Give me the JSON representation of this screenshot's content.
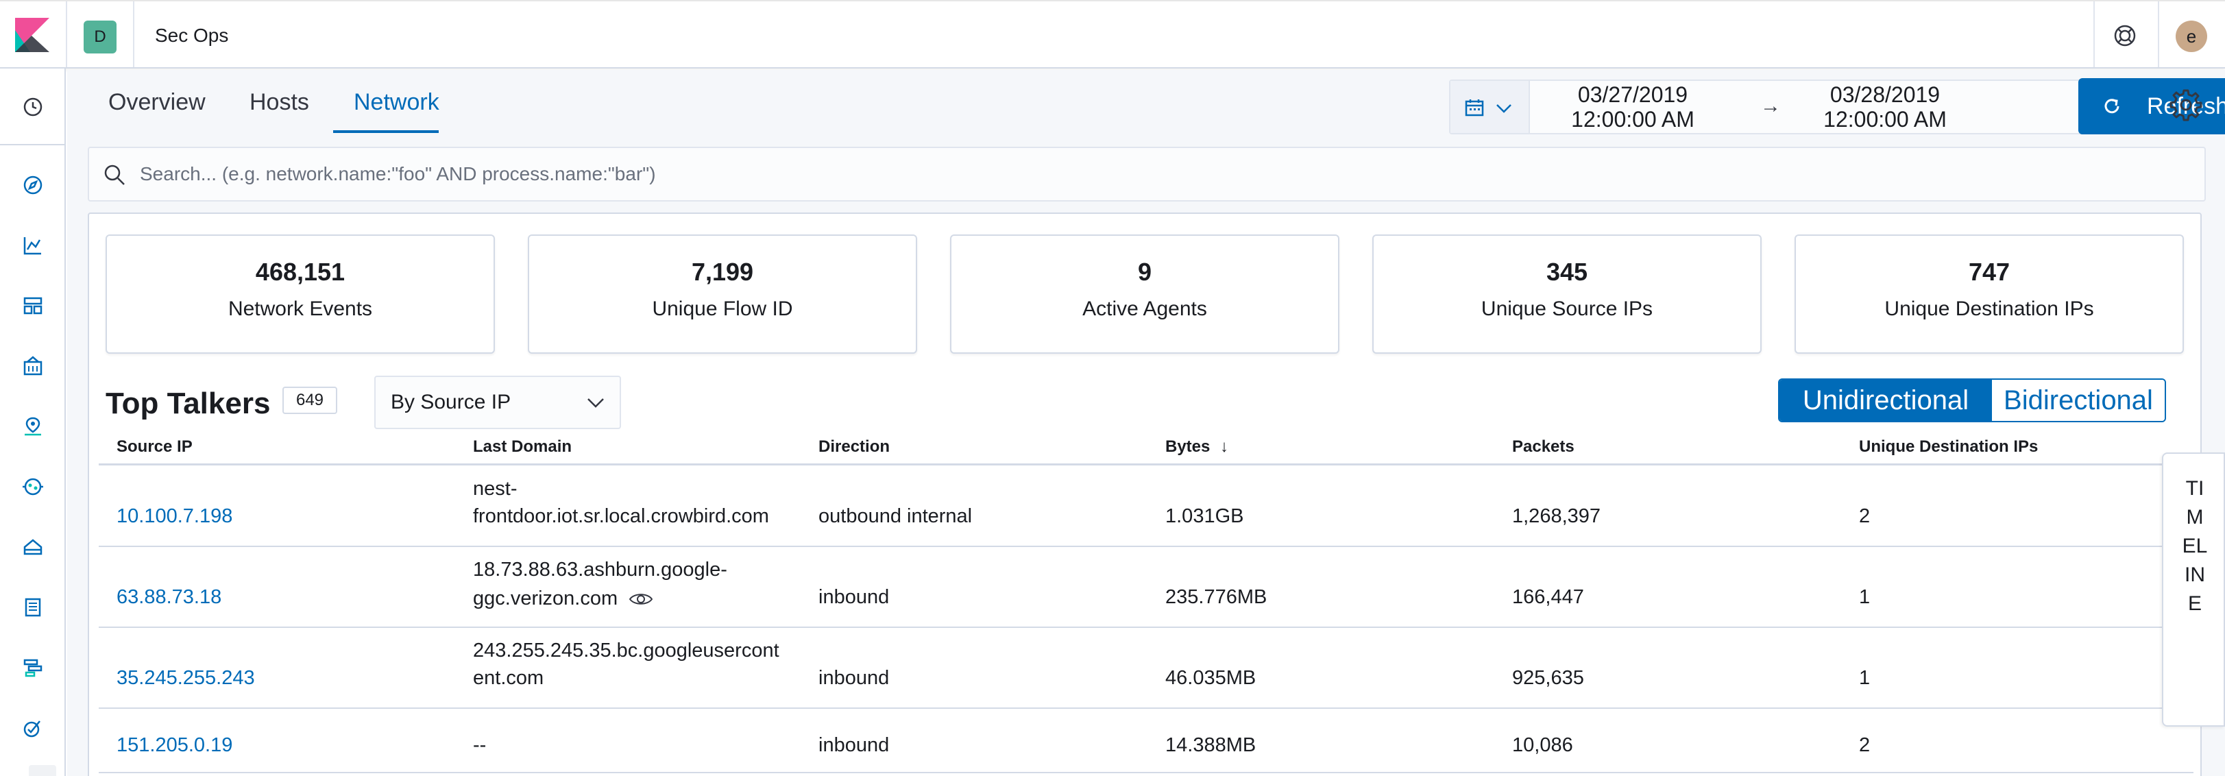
{
  "header": {
    "space_initial": "D",
    "space_title": "Sec Ops",
    "user_initial": "e"
  },
  "nav_icons": [
    "clock-icon",
    "compass-icon",
    "chart-icon",
    "dashboard-icon",
    "canvas-icon",
    "maps-icon",
    "ml-icon",
    "infra-icon",
    "logs-icon",
    "apm-icon",
    "uptime-icon"
  ],
  "tabs": [
    {
      "label": "Overview",
      "active": false
    },
    {
      "label": "Hosts",
      "active": false
    },
    {
      "label": "Network",
      "active": true
    }
  ],
  "date_range": {
    "start_date": "03/27/2019",
    "start_time": "12:00:00 AM",
    "end_date": "03/28/2019",
    "end_time": "12:00:00 AM",
    "arrow": "→"
  },
  "refresh_label": "Refresh",
  "search": {
    "placeholder": "Search... (e.g. network.name:\"foo\" AND process.name:\"bar\")"
  },
  "stats": [
    {
      "value": "468,151",
      "label": "Network Events"
    },
    {
      "value": "7,199",
      "label": "Unique Flow ID"
    },
    {
      "value": "9",
      "label": "Active Agents"
    },
    {
      "value": "345",
      "label": "Unique Source IPs"
    },
    {
      "value": "747",
      "label": "Unique Destination IPs"
    }
  ],
  "top_talkers": {
    "title": "Top Talkers",
    "count": "649",
    "select_value": "By Source IP",
    "toggle": {
      "on": "Unidirectional",
      "off": "Bidirectional"
    },
    "columns": [
      "Source IP",
      "Last Domain",
      "Direction",
      "Bytes",
      "Packets",
      "Unique Destination IPs"
    ],
    "sort_indicator": "↓",
    "rows": [
      {
        "source_ip": "10.100.7.198",
        "domain_1": "nest-",
        "domain_2": "frontdoor.iot.sr.local.crowbird.com",
        "direction": "outbound internal",
        "bytes": "1.031GB",
        "packets": "1,268,397",
        "unique_dest": "2"
      },
      {
        "source_ip": "63.88.73.18",
        "domain_1": "18.73.88.63.ashburn.google-",
        "domain_2": "ggc.verizon.com",
        "direction": "inbound",
        "bytes": "235.776MB",
        "packets": "166,447",
        "unique_dest": "1"
      },
      {
        "source_ip": "35.245.255.243",
        "domain_1": "243.255.245.35.bc.googleusercont",
        "domain_2": "ent.com",
        "direction": "inbound",
        "bytes": "46.035MB",
        "packets": "925,635",
        "unique_dest": "1"
      },
      {
        "source_ip": "151.205.0.19",
        "domain_1": "--",
        "domain_2": "",
        "direction": "inbound",
        "bytes": "14.388MB",
        "packets": "10,086",
        "unique_dest": "2"
      }
    ]
  },
  "timeline_label": "TIMELINE",
  "colors": {
    "accent": "#006bb8",
    "space_badge": "#54b399",
    "avatar": "#c9a889"
  }
}
